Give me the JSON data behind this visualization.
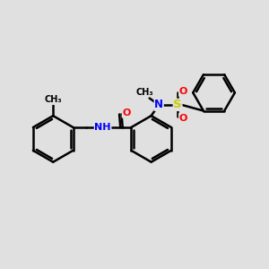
{
  "bg_color": "#e0e0e0",
  "bond_color": "#000000",
  "bond_width": 1.8,
  "N_color": "#0000ff",
  "O_color": "#ff0000",
  "S_color": "#cccc00",
  "C_color": "#000000",
  "fig_bg": "#e0e0e0",
  "xlim": [
    0,
    12
  ],
  "ylim": [
    0,
    10
  ]
}
